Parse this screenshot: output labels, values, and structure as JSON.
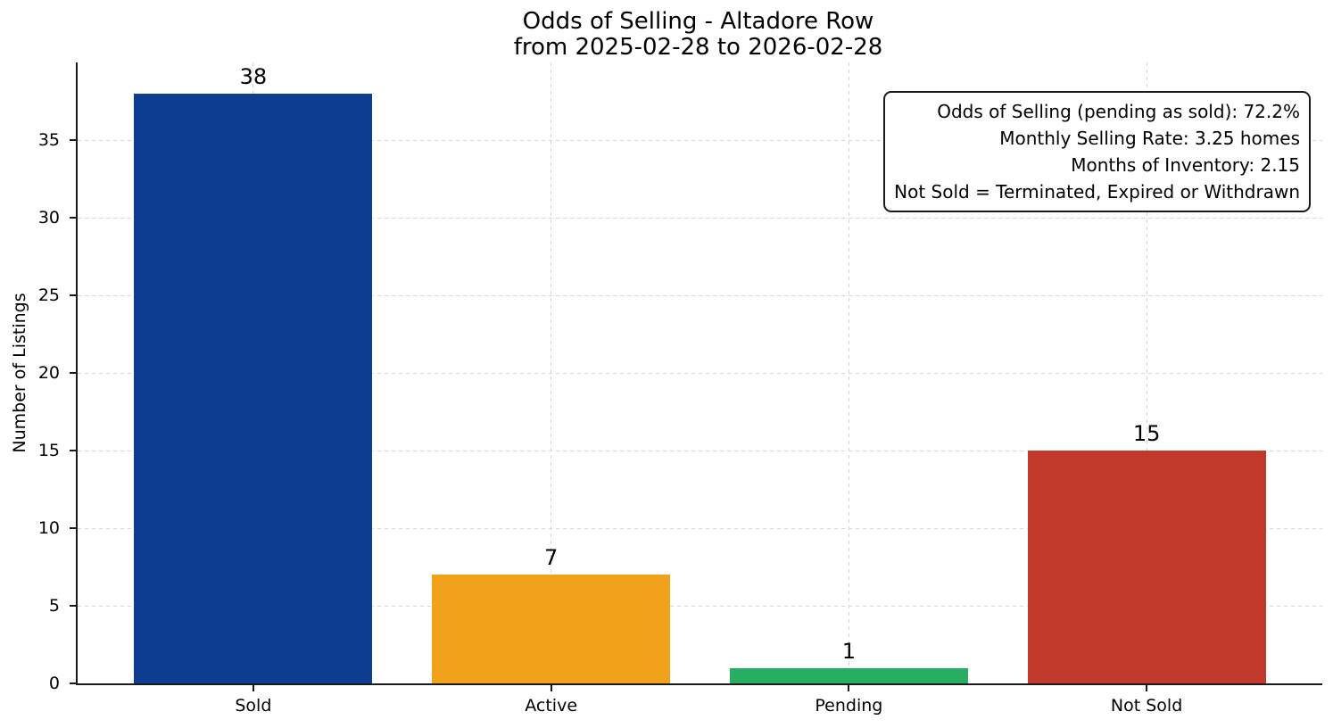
{
  "chart_data": {
    "type": "bar",
    "title": "Odds of Selling - Altadore Row",
    "subtitle": "from 2025-02-28 to 2026-02-28",
    "categories": [
      "Sold",
      "Active",
      "Pending",
      "Not Sold"
    ],
    "values": [
      38,
      7,
      1,
      15
    ],
    "bar_colors": [
      "#0d3d91",
      "#f2a11b",
      "#27ae60",
      "#c0392b"
    ],
    "xlabel": "",
    "ylabel": "Number of Listings",
    "ylim": [
      0,
      40
    ],
    "xlim": [
      -0.59,
      3.59
    ],
    "bar_width": 0.8,
    "yticks": [
      0,
      5,
      10,
      15,
      20,
      25,
      30,
      35
    ],
    "grid": true,
    "grid_style": "dashed",
    "legend": "none",
    "annotations": [
      "Odds of Selling (pending as sold): 72.2%",
      "Monthly Selling Rate: 3.25 homes",
      "Months of Inventory: 2.15",
      "Not Sold = Terminated, Expired or Withdrawn"
    ]
  },
  "colors": {
    "axis": "#1a1a1a",
    "grid": "#d6d6d6",
    "text": "#000000",
    "background": "#ffffff"
  }
}
